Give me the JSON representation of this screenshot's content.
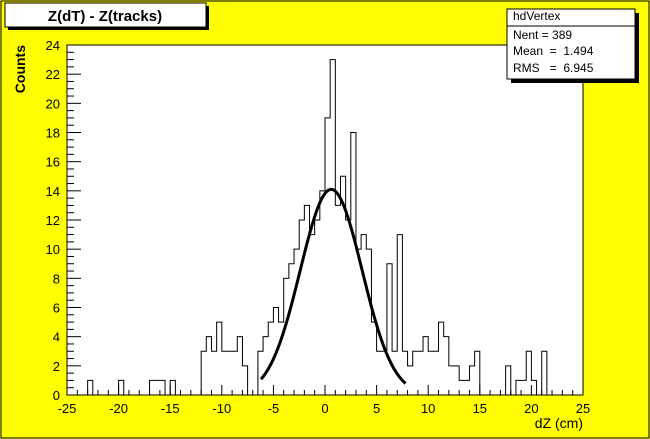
{
  "chart_data": {
    "type": "histogram",
    "title": "Z(dT) - Z(tracks)",
    "xlabel": "dZ (cm)",
    "ylabel": "Counts",
    "xlim": [
      -25,
      25
    ],
    "ylim": [
      0,
      24
    ],
    "x_ticks": [
      "-25",
      "-20",
      "-15",
      "-10",
      "-5",
      "0",
      "5",
      "10",
      "15",
      "20",
      "25"
    ],
    "y_ticks": [
      "0",
      "2",
      "4",
      "6",
      "8",
      "10",
      "12",
      "14",
      "16",
      "18",
      "20",
      "22",
      "24"
    ],
    "bin_width": 0.5,
    "bin_start": -25,
    "counts": [
      0,
      0,
      0,
      0,
      1,
      0,
      0,
      0,
      0,
      0,
      1,
      0,
      0,
      0,
      0,
      0,
      1,
      1,
      1,
      0,
      1,
      0,
      0,
      0,
      0,
      0,
      3,
      4,
      3,
      5,
      3,
      3,
      3,
      4,
      2,
      0,
      0,
      3,
      4,
      5,
      6,
      5,
      8,
      9,
      10,
      12,
      13,
      11,
      12,
      14,
      19,
      23,
      13,
      15,
      12,
      18,
      10,
      11,
      10,
      5,
      3,
      3,
      9,
      3,
      11,
      3,
      2,
      3,
      3,
      4,
      3,
      3,
      5,
      4,
      2,
      2,
      1,
      1,
      2,
      3,
      0,
      0,
      0,
      0,
      0,
      2,
      0,
      1,
      1,
      3,
      1,
      0,
      3,
      0,
      0,
      0,
      0,
      0,
      0,
      0
    ],
    "fit": {
      "type": "gaussian",
      "constant": 14.1,
      "mean": 0.6,
      "sigma": 3.0,
      "range": [
        -6.2,
        7.8
      ]
    },
    "stats": {
      "name": "hdVertex",
      "entries_label": "Nent = 389",
      "mean_label": "Mean  =  1.494",
      "rms_label": "RMS   =  6.945"
    }
  }
}
